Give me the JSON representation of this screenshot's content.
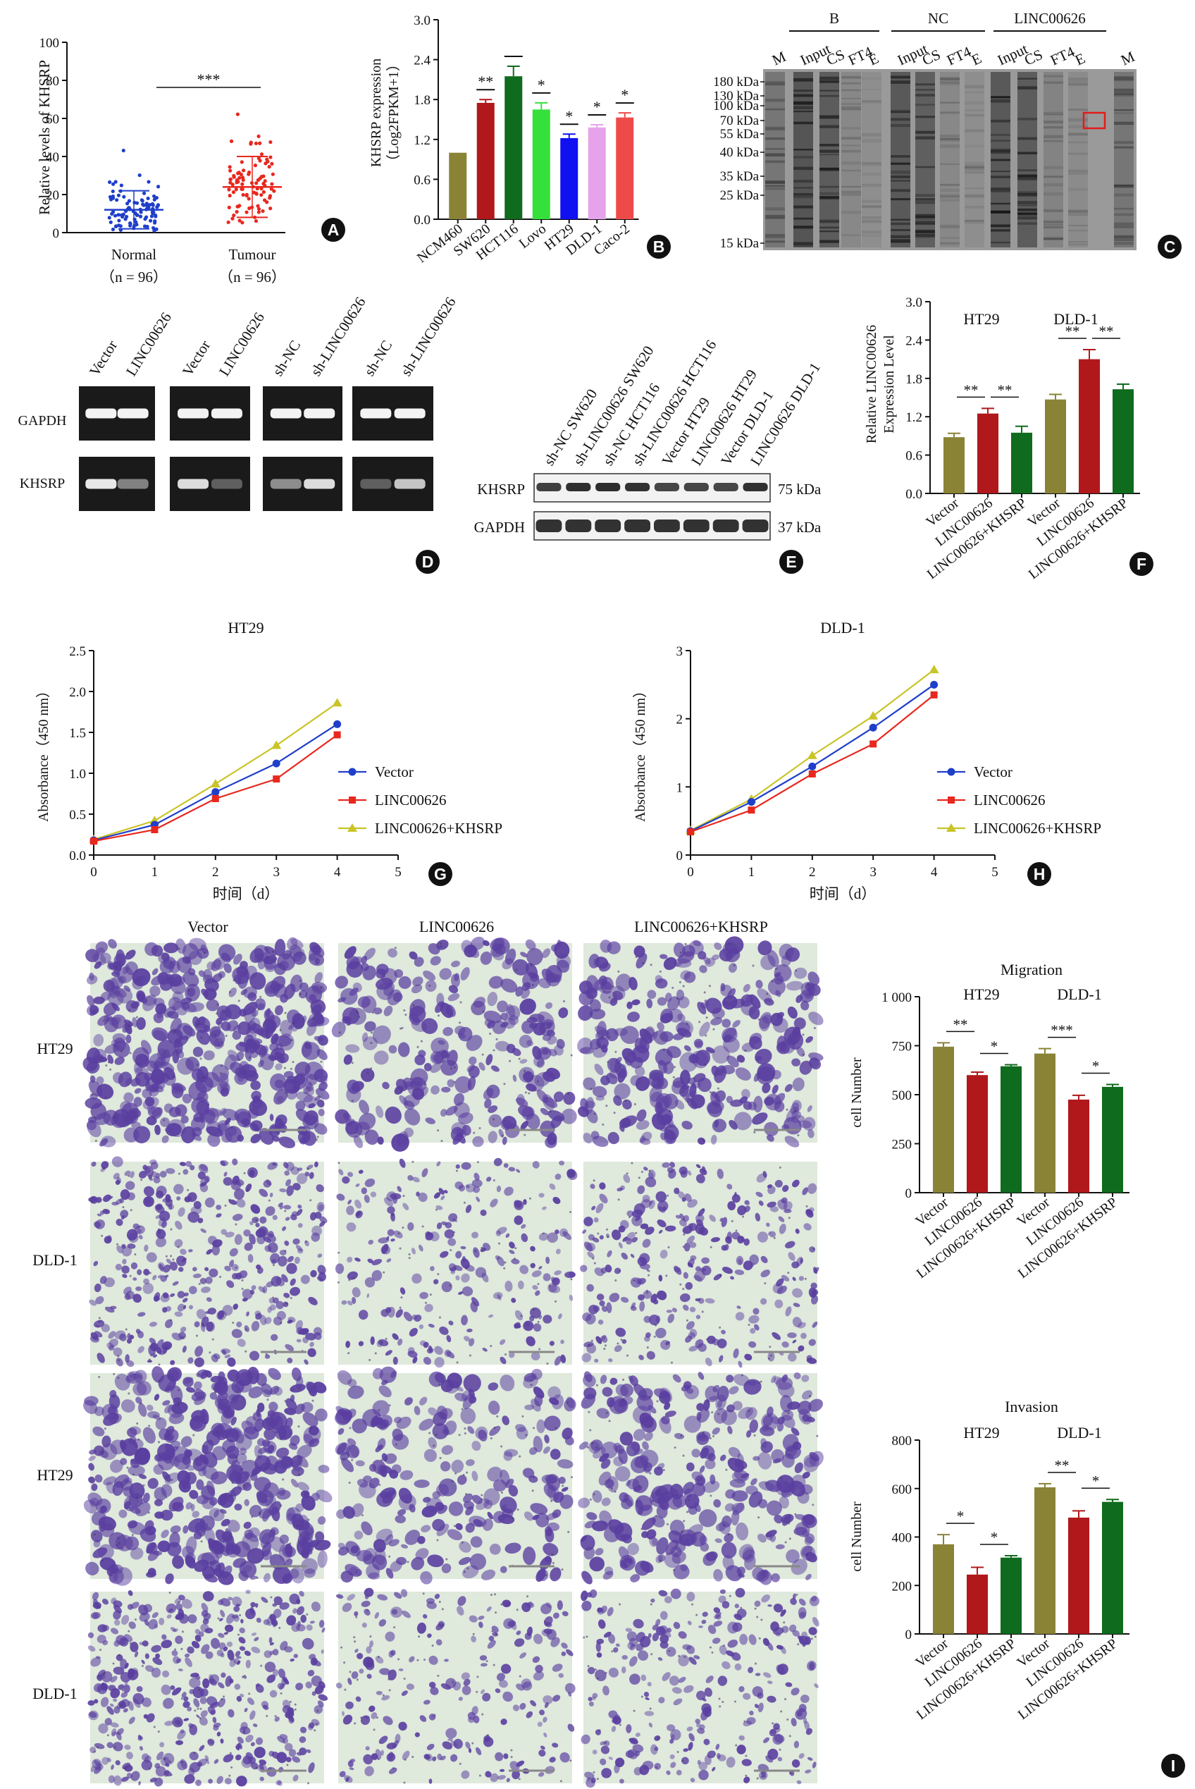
{
  "colors": {
    "olive": "#8a8336",
    "darkred": "#b0181c",
    "darkgreen": "#0f6b1d",
    "blue": "#1f3fc9",
    "red": "#e8281e",
    "yellow": "#c9c427",
    "lime": "#35e03a",
    "violet": "#e6a3ec",
    "pink": "#ef4a4a",
    "bright_blue": "#1010f0",
    "stain": "#5a3fa0"
  },
  "panel_labels": [
    "A",
    "B",
    "C",
    "D",
    "E",
    "F",
    "G",
    "H",
    "I"
  ],
  "chart_data": [
    {
      "id": "A",
      "type": "scatter",
      "ylabel": "Relative levels of KHSRP",
      "ylim": [
        0,
        100
      ],
      "yticks": [
        "0",
        "20",
        "40",
        "60",
        "80",
        "100"
      ],
      "categories": [
        "Normal",
        "Tumour"
      ],
      "category_n": [
        "（n = 96）",
        "（n = 96）"
      ],
      "means": [
        12,
        24
      ],
      "sd": [
        10,
        16
      ],
      "significance": "***",
      "n_points": 96
    },
    {
      "id": "B",
      "type": "bar",
      "ylabel_line1": "KHSRP expression",
      "ylabel_line2": "（Log2FPKM+1）",
      "ylim": [
        0,
        3.0
      ],
      "yticks": [
        "0.0",
        "0.6",
        "1.2",
        "1.8",
        "2.4",
        "3.0"
      ],
      "categories": [
        "NCM460",
        "SW620",
        "HCT116",
        "Lovo",
        "HT29",
        "DLD-1",
        "Caco-2"
      ],
      "values": [
        1.0,
        1.75,
        2.15,
        1.65,
        1.22,
        1.38,
        1.53
      ],
      "errors": [
        0,
        0.05,
        0.15,
        0.1,
        0.06,
        0.04,
        0.07
      ],
      "significance": [
        "",
        "**",
        "",
        "*",
        "*",
        "*",
        "*"
      ]
    },
    {
      "id": "F",
      "type": "bar",
      "ylabel_line1": "Relative LINC00626",
      "ylabel_line2": "Expression Level",
      "ylim": [
        0,
        3.0
      ],
      "yticks": [
        "0.0",
        "0.6",
        "1.2",
        "1.8",
        "2.4",
        "3.0"
      ],
      "group_labels": [
        "HT29",
        "DLD-1"
      ],
      "categories": [
        "Vector",
        "LINC00626",
        "LINC00626+KHSRP",
        "Vector",
        "LINC00626",
        "LINC00626+KHSRP"
      ],
      "values": [
        0.88,
        1.25,
        0.95,
        1.47,
        2.1,
        1.63
      ],
      "errors": [
        0.06,
        0.08,
        0.1,
        0.08,
        0.15,
        0.08
      ],
      "significance": [
        [
          "**",
          0,
          1
        ],
        [
          "**",
          1,
          2
        ],
        [
          "**",
          3,
          4
        ],
        [
          "**",
          4,
          5
        ]
      ]
    },
    {
      "id": "G",
      "type": "line",
      "title": "HT29",
      "ylabel": "Absorbance（450 nm）",
      "xlabel": "时间（d）",
      "xlim": [
        0,
        5
      ],
      "ylim": [
        0,
        2.5
      ],
      "xticks": [
        "0",
        "1",
        "2",
        "3",
        "4",
        "5"
      ],
      "yticks": [
        "0.0",
        "0.5",
        "1.0",
        "1.5",
        "2.0",
        "2.5"
      ],
      "x": [
        0,
        1,
        2,
        3,
        4
      ],
      "series": [
        {
          "name": "Vector",
          "values": [
            0.18,
            0.37,
            0.77,
            1.12,
            1.6
          ]
        },
        {
          "name": "LINC00626",
          "values": [
            0.17,
            0.31,
            0.69,
            0.93,
            1.47
          ]
        },
        {
          "name": "LINC00626+KHSRP",
          "values": [
            0.19,
            0.42,
            0.87,
            1.34,
            1.86
          ]
        }
      ]
    },
    {
      "id": "H",
      "type": "line",
      "title": "DLD-1",
      "ylabel": "Absorbance（450 nm）",
      "xlabel": "时间（d）",
      "xlim": [
        0,
        5
      ],
      "ylim": [
        0,
        3
      ],
      "xticks": [
        "0",
        "1",
        "2",
        "3",
        "4",
        "5"
      ],
      "yticks": [
        "0",
        "1",
        "2",
        "3"
      ],
      "x": [
        0,
        1,
        2,
        3,
        4
      ],
      "series": [
        {
          "name": "Vector",
          "values": [
            0.35,
            0.78,
            1.3,
            1.87,
            2.5
          ]
        },
        {
          "name": "LINC00626",
          "values": [
            0.34,
            0.66,
            1.19,
            1.63,
            2.35
          ]
        },
        {
          "name": "LINC00626+KHSRP",
          "values": [
            0.36,
            0.82,
            1.46,
            2.04,
            2.72
          ]
        }
      ]
    },
    {
      "id": "I-migration",
      "type": "bar",
      "title": "Migration",
      "ylabel": "cell Number",
      "ylim": [
        0,
        1000
      ],
      "yticks": [
        "0",
        "250",
        "500",
        "750",
        "1 000"
      ],
      "group_labels": [
        "HT29",
        "DLD-1"
      ],
      "categories": [
        "Vector",
        "LINC00626",
        "LINC00626+KHSRP",
        "Vector",
        "LINC00626",
        "LINC00626+KHSRP"
      ],
      "values": [
        745,
        600,
        645,
        710,
        475,
        540
      ],
      "errors": [
        20,
        15,
        8,
        25,
        22,
        12
      ],
      "significance": [
        [
          "**",
          0,
          1
        ],
        [
          "*",
          1,
          2
        ],
        [
          "***",
          3,
          4
        ],
        [
          "*",
          4,
          5
        ]
      ]
    },
    {
      "id": "I-invasion",
      "type": "bar",
      "title": "Invasion",
      "ylabel": "cell Number",
      "ylim": [
        0,
        800
      ],
      "yticks": [
        "0",
        "200",
        "400",
        "600",
        "800"
      ],
      "group_labels": [
        "HT29",
        "DLD-1"
      ],
      "categories": [
        "Vector",
        "LINC00626",
        "LINC00626+KHSRP",
        "Vector",
        "LINC00626",
        "LINC00626+KHSRP"
      ],
      "values": [
        370,
        245,
        315,
        605,
        480,
        545
      ],
      "errors": [
        40,
        30,
        8,
        15,
        28,
        10
      ],
      "significance": [
        [
          "*",
          0,
          1
        ],
        [
          "*",
          1,
          2
        ],
        [
          "**",
          3,
          4
        ],
        [
          "*",
          4,
          5
        ]
      ]
    }
  ],
  "gel_C": {
    "groups": [
      "B",
      "NC",
      "LINC00626"
    ],
    "lanes": [
      "M",
      "Input",
      "CS",
      "FT4",
      "E",
      "Input",
      "CS",
      "FT4",
      "E",
      "Input",
      "CS",
      "FT4",
      "E",
      "M"
    ],
    "markers": [
      "180 kDa",
      "130 kDa",
      "100 kDa",
      "70 kDa",
      "55 kDa",
      "40 kDa",
      "35 kDa",
      "25 kDa",
      "15 kDa"
    ]
  },
  "gel_D": {
    "lanes": [
      "Vector",
      "LINC00626",
      "Vector",
      "LINC00626",
      "sh-NC",
      "sh-LINC00626",
      "sh-NC",
      "sh-LINC00626"
    ],
    "rows": [
      "GAPDH",
      "KHSRP"
    ],
    "khsrp_intensity": [
      0.9,
      0.45,
      0.85,
      0.3,
      0.5,
      0.85,
      0.3,
      0.75
    ]
  },
  "blot_E": {
    "lanes": [
      "sh-NC SW620",
      "sh-LINC00626 SW620",
      "sh-NC HCT116",
      "sh-LINC00626 HCT116",
      "Vector HT29",
      "LINC00626 HT29",
      "Vector DLD-1",
      "LINC00626 DLD-1"
    ],
    "rows": [
      "KHSRP",
      "GAPDH"
    ],
    "sizes": [
      "75 kDa",
      "37 kDa"
    ]
  },
  "micrographs": {
    "columns": [
      "Vector",
      "LINC00626",
      "LINC00626+KHSRP"
    ],
    "rows": [
      "HT29",
      "DLD-1",
      "HT29",
      "DLD-1"
    ],
    "density": [
      [
        0.9,
        0.5,
        0.6
      ],
      [
        0.75,
        0.45,
        0.55
      ],
      [
        0.85,
        0.45,
        0.6
      ],
      [
        0.8,
        0.4,
        0.5
      ]
    ]
  }
}
